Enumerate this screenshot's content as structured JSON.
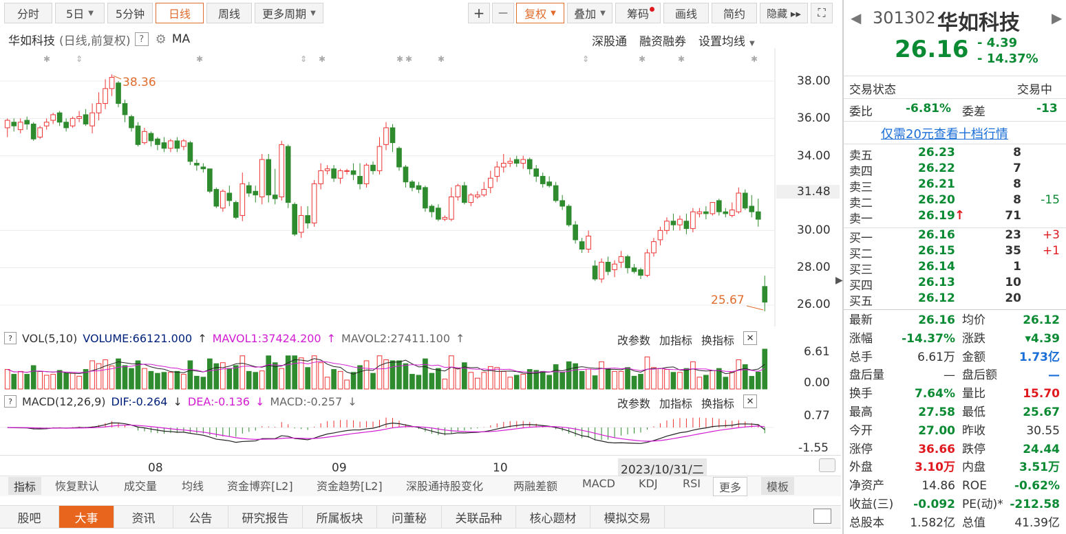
{
  "toolbar": {
    "periods": [
      "分时",
      "5日",
      "5分钟",
      "日线",
      "周线",
      "更多周期"
    ],
    "plus": "+",
    "minus": "—",
    "fuquan": "复权",
    "diejia": "叠加",
    "chouma": "筹码",
    "huaxian": "画线",
    "jianyue": "简约",
    "yincang": "隐藏 ▸▸"
  },
  "chart_header": {
    "name": "华如科技",
    "mode": "(日线,前复权)",
    "help": "?",
    "ma": "MA",
    "links": [
      "深股通",
      "融资融券",
      "设置均线"
    ]
  },
  "price_axis": [
    "38.00",
    "36.00",
    "34.00",
    "31.48",
    "30.00",
    "28.00",
    "26.00"
  ],
  "annotations": {
    "high": "38.36",
    "low": "25.67"
  },
  "vol_header": {
    "prefix": "VOL(5,10)",
    "volume": "VOLUME:66121.000",
    "mavol1": "MAVOL1:37424.200",
    "mavol2": "MAVOL2:27411.100",
    "actions": [
      "改参数",
      "加指标",
      "换指标"
    ]
  },
  "vol_axis": [
    "6.61",
    "0.00"
  ],
  "macd_header": {
    "prefix": "MACD(12,26,9)",
    "dif": "DIF:-0.264",
    "dea": "DEA:-0.136",
    "macd": "MACD:-0.257",
    "actions": [
      "改参数",
      "加指标",
      "换指标"
    ]
  },
  "macd_axis": [
    "0.77",
    "-1.55"
  ],
  "date_axis": [
    "08",
    "09",
    "10"
  ],
  "date_cursor": "2023/10/31/二",
  "indicator_bar": [
    "指标",
    "恢复默认",
    "成交量",
    "均线",
    "资金博弈[L2]",
    "资金趋势[L2]",
    "深股通持股变化",
    "两融差额",
    "MACD",
    "KDJ",
    "RSI",
    "更多",
    "模板"
  ],
  "bottom_tabs": [
    "股吧",
    "大事",
    "资讯",
    "公告",
    "研究报告",
    "所属板块",
    "问董秘",
    "关联品种",
    "核心题材",
    "模拟交易"
  ],
  "quote": {
    "code": "301302",
    "name": "华如科技",
    "price": "26.16",
    "change": "- 4.39",
    "pct": "- 14.37%",
    "trade_status_label": "交易状态",
    "trade_status": "交易中",
    "weibi_label": "委比",
    "weibi": "-6.81%",
    "weicha_label": "委差",
    "weicha": "-13",
    "promo": "仅需20元查看十档行情",
    "asks": [
      {
        "label": "卖五",
        "price": "26.23",
        "vol": "8",
        "chg": ""
      },
      {
        "label": "卖四",
        "price": "26.22",
        "vol": "7",
        "chg": ""
      },
      {
        "label": "卖三",
        "price": "26.21",
        "vol": "8",
        "chg": ""
      },
      {
        "label": "卖二",
        "price": "26.20",
        "vol": "8",
        "chg": "-15"
      },
      {
        "label": "卖一",
        "price": "26.19",
        "vol": "71",
        "chg": ""
      }
    ],
    "bids": [
      {
        "label": "买一",
        "price": "26.16",
        "vol": "23",
        "chg": "+3"
      },
      {
        "label": "买二",
        "price": "26.15",
        "vol": "35",
        "chg": "+1"
      },
      {
        "label": "买三",
        "price": "26.14",
        "vol": "1",
        "chg": ""
      },
      {
        "label": "买四",
        "price": "26.13",
        "vol": "10",
        "chg": ""
      },
      {
        "label": "买五",
        "price": "26.12",
        "vol": "20",
        "chg": ""
      }
    ],
    "stats": [
      [
        "最新",
        "26.16",
        "均价",
        "26.12"
      ],
      [
        "涨幅",
        "-14.37%",
        "涨跌",
        "▾4.39"
      ],
      [
        "总手",
        "6.61万",
        "金额",
        "1.73亿"
      ],
      [
        "盘后量",
        "—",
        "盘后额",
        "—"
      ],
      [
        "换手",
        "7.64%",
        "量比",
        "15.70"
      ],
      [
        "最高",
        "27.58",
        "最低",
        "25.67"
      ],
      [
        "今开",
        "27.00",
        "昨收",
        "30.55"
      ],
      [
        "涨停",
        "36.66",
        "跌停",
        "24.44"
      ],
      [
        "外盘",
        "3.10万",
        "内盘",
        "3.51万"
      ],
      [
        "净资产",
        "14.86",
        "ROE",
        "-0.62%"
      ],
      [
        "收益(三)",
        "-0.092",
        "PE(动)*",
        "-212.58"
      ],
      [
        "总股本",
        "1.582亿",
        "总值",
        "41.39亿"
      ]
    ]
  },
  "chart_data": {
    "type": "candlestick",
    "title": "华如科技 (日线,前复权)",
    "ylim": [
      25,
      39
    ],
    "candles": [
      [
        35.5,
        35.9,
        35.0,
        36.0
      ],
      [
        35.8,
        35.6,
        35.3,
        36.0
      ],
      [
        35.4,
        35.8,
        35.2,
        36.0
      ],
      [
        35.9,
        35.7,
        35.4,
        36.1
      ],
      [
        35.7,
        34.9,
        34.8,
        35.8
      ],
      [
        35.0,
        35.5,
        34.9,
        35.6
      ],
      [
        35.6,
        35.8,
        35.4,
        36.0
      ],
      [
        35.9,
        36.2,
        35.7,
        36.3
      ],
      [
        36.3,
        35.8,
        35.6,
        36.4
      ],
      [
        35.8,
        35.5,
        35.3,
        36.0
      ],
      [
        35.6,
        36.0,
        35.5,
        36.1
      ],
      [
        36.0,
        36.1,
        35.8,
        36.4
      ],
      [
        36.2,
        35.7,
        35.6,
        36.5
      ],
      [
        35.6,
        36.3,
        35.2,
        36.8
      ],
      [
        36.3,
        36.8,
        35.9,
        37.4
      ],
      [
        36.8,
        37.6,
        36.5,
        38.1
      ],
      [
        37.6,
        38.2,
        37.2,
        38.36
      ],
      [
        37.9,
        36.8,
        36.6,
        38.0
      ],
      [
        36.8,
        36.2,
        35.8,
        37.0
      ],
      [
        36.1,
        35.5,
        35.3,
        36.2
      ],
      [
        35.6,
        34.6,
        34.5,
        35.8
      ],
      [
        34.7,
        35.3,
        34.6,
        35.5
      ],
      [
        35.2,
        34.8,
        34.5,
        35.3
      ],
      [
        34.9,
        34.6,
        34.3,
        35.0
      ],
      [
        34.7,
        34.4,
        34.2,
        35.0
      ],
      [
        34.4,
        34.8,
        34.2,
        34.9
      ],
      [
        34.8,
        34.4,
        34.2,
        35.0
      ],
      [
        34.5,
        34.8,
        34.3,
        34.9
      ],
      [
        34.7,
        33.7,
        33.5,
        34.8
      ],
      [
        33.6,
        33.5,
        33.2,
        33.8
      ],
      [
        33.4,
        33.3,
        33.1,
        33.6
      ],
      [
        33.3,
        32.1,
        32.0,
        33.3
      ],
      [
        32.2,
        31.3,
        31.2,
        32.3
      ],
      [
        31.2,
        32.1,
        31.0,
        32.2
      ],
      [
        32.0,
        31.6,
        31.3,
        32.4
      ],
      [
        31.5,
        30.7,
        30.6,
        31.6
      ],
      [
        30.8,
        32.5,
        30.5,
        33.1
      ],
      [
        32.4,
        32.0,
        31.8,
        32.6
      ],
      [
        32.1,
        31.9,
        31.5,
        32.4
      ],
      [
        31.8,
        33.8,
        31.4,
        34.1
      ],
      [
        33.8,
        31.9,
        31.5,
        34.1
      ],
      [
        31.9,
        31.7,
        31.4,
        33.3
      ],
      [
        31.8,
        34.6,
        31.6,
        34.8
      ],
      [
        34.5,
        31.5,
        31.2,
        34.6
      ],
      [
        31.4,
        29.8,
        29.7,
        31.5
      ],
      [
        29.9,
        30.8,
        29.6,
        31.3
      ],
      [
        30.8,
        30.4,
        30.1,
        31.3
      ],
      [
        30.4,
        32.5,
        30.2,
        32.7
      ],
      [
        32.5,
        33.2,
        32.2,
        33.6
      ],
      [
        33.2,
        33.3,
        33.0,
        33.5
      ],
      [
        33.3,
        32.8,
        32.6,
        33.5
      ],
      [
        32.8,
        33.2,
        32.5,
        33.3
      ],
      [
        33.2,
        33.2,
        33.0,
        33.3
      ],
      [
        33.2,
        33.0,
        32.7,
        33.6
      ],
      [
        32.9,
        32.5,
        32.2,
        33.6
      ],
      [
        32.5,
        33.5,
        32.3,
        33.6
      ],
      [
        33.5,
        33.2,
        33.0,
        33.7
      ],
      [
        33.2,
        34.5,
        33.0,
        35.0
      ],
      [
        34.6,
        35.5,
        34.3,
        35.8
      ],
      [
        35.5,
        34.7,
        34.2,
        35.7
      ],
      [
        34.4,
        33.4,
        33.2,
        34.5
      ],
      [
        33.4,
        32.6,
        32.3,
        33.5
      ],
      [
        32.6,
        32.3,
        32.1,
        32.7
      ],
      [
        32.4,
        32.2,
        32.0,
        32.6
      ],
      [
        32.3,
        31.2,
        31.0,
        32.4
      ],
      [
        31.3,
        31.0,
        30.7,
        31.4
      ],
      [
        31.2,
        30.6,
        30.5,
        31.4
      ],
      [
        30.6,
        30.7,
        30.5,
        30.8
      ],
      [
        30.6,
        31.8,
        30.5,
        32.3
      ],
      [
        31.8,
        32.4,
        31.6,
        32.5
      ],
      [
        32.4,
        31.5,
        31.4,
        32.6
      ],
      [
        31.5,
        31.9,
        31.3,
        32.0
      ],
      [
        31.8,
        31.9,
        31.7,
        32.1
      ],
      [
        31.9,
        32.2,
        31.8,
        32.6
      ],
      [
        32.3,
        32.8,
        32.0,
        33.2
      ],
      [
        32.9,
        33.4,
        32.6,
        33.7
      ],
      [
        33.4,
        33.6,
        33.1,
        34.1
      ],
      [
        33.6,
        33.7,
        33.4,
        33.9
      ],
      [
        33.8,
        33.6,
        33.4,
        34.0
      ],
      [
        33.6,
        33.8,
        33.3,
        34.0
      ],
      [
        33.8,
        33.3,
        33.0,
        33.9
      ],
      [
        33.3,
        32.9,
        32.6,
        33.5
      ],
      [
        32.9,
        32.5,
        32.3,
        33.1
      ],
      [
        32.6,
        32.4,
        32.3,
        32.9
      ],
      [
        32.4,
        31.6,
        31.5,
        32.6
      ],
      [
        31.6,
        31.3,
        31.1,
        31.9
      ],
      [
        31.3,
        30.3,
        30.2,
        31.4
      ],
      [
        30.3,
        29.5,
        29.3,
        30.5
      ],
      [
        29.4,
        29.0,
        28.8,
        29.6
      ],
      [
        29.0,
        29.7,
        28.8,
        30.0
      ],
      [
        28.1,
        27.4,
        27.3,
        28.4
      ],
      [
        27.4,
        28.3,
        27.2,
        28.5
      ],
      [
        28.3,
        27.8,
        27.6,
        28.6
      ],
      [
        27.9,
        28.2,
        27.5,
        28.4
      ],
      [
        28.3,
        28.6,
        28.0,
        28.9
      ],
      [
        28.6,
        28.0,
        27.7,
        28.7
      ],
      [
        28.0,
        27.8,
        27.7,
        28.2
      ],
      [
        27.9,
        27.6,
        27.4,
        28.0
      ],
      [
        27.6,
        28.8,
        27.5,
        29.0
      ],
      [
        28.8,
        29.4,
        28.6,
        29.6
      ],
      [
        29.5,
        30.0,
        29.2,
        30.2
      ],
      [
        30.0,
        30.5,
        29.8,
        30.7
      ],
      [
        30.5,
        30.3,
        30.0,
        30.9
      ],
      [
        30.3,
        30.6,
        30.0,
        30.8
      ],
      [
        30.5,
        30.1,
        29.8,
        30.9
      ],
      [
        30.1,
        31.0,
        29.9,
        31.2
      ],
      [
        30.9,
        31.0,
        30.7,
        31.2
      ],
      [
        31.0,
        30.9,
        30.6,
        31.3
      ],
      [
        30.9,
        31.5,
        30.8,
        31.5
      ],
      [
        31.6,
        31.0,
        30.8,
        31.7
      ],
      [
        31.0,
        30.9,
        30.7,
        31.2
      ],
      [
        30.8,
        31.1,
        30.7,
        31.5
      ],
      [
        31.0,
        32.0,
        30.9,
        32.3
      ],
      [
        32.0,
        31.2,
        31.1,
        32.2
      ],
      [
        31.3,
        31.0,
        30.7,
        31.9
      ],
      [
        31.0,
        30.6,
        30.2,
        31.7
      ],
      [
        27.0,
        26.16,
        25.67,
        27.58
      ]
    ]
  }
}
